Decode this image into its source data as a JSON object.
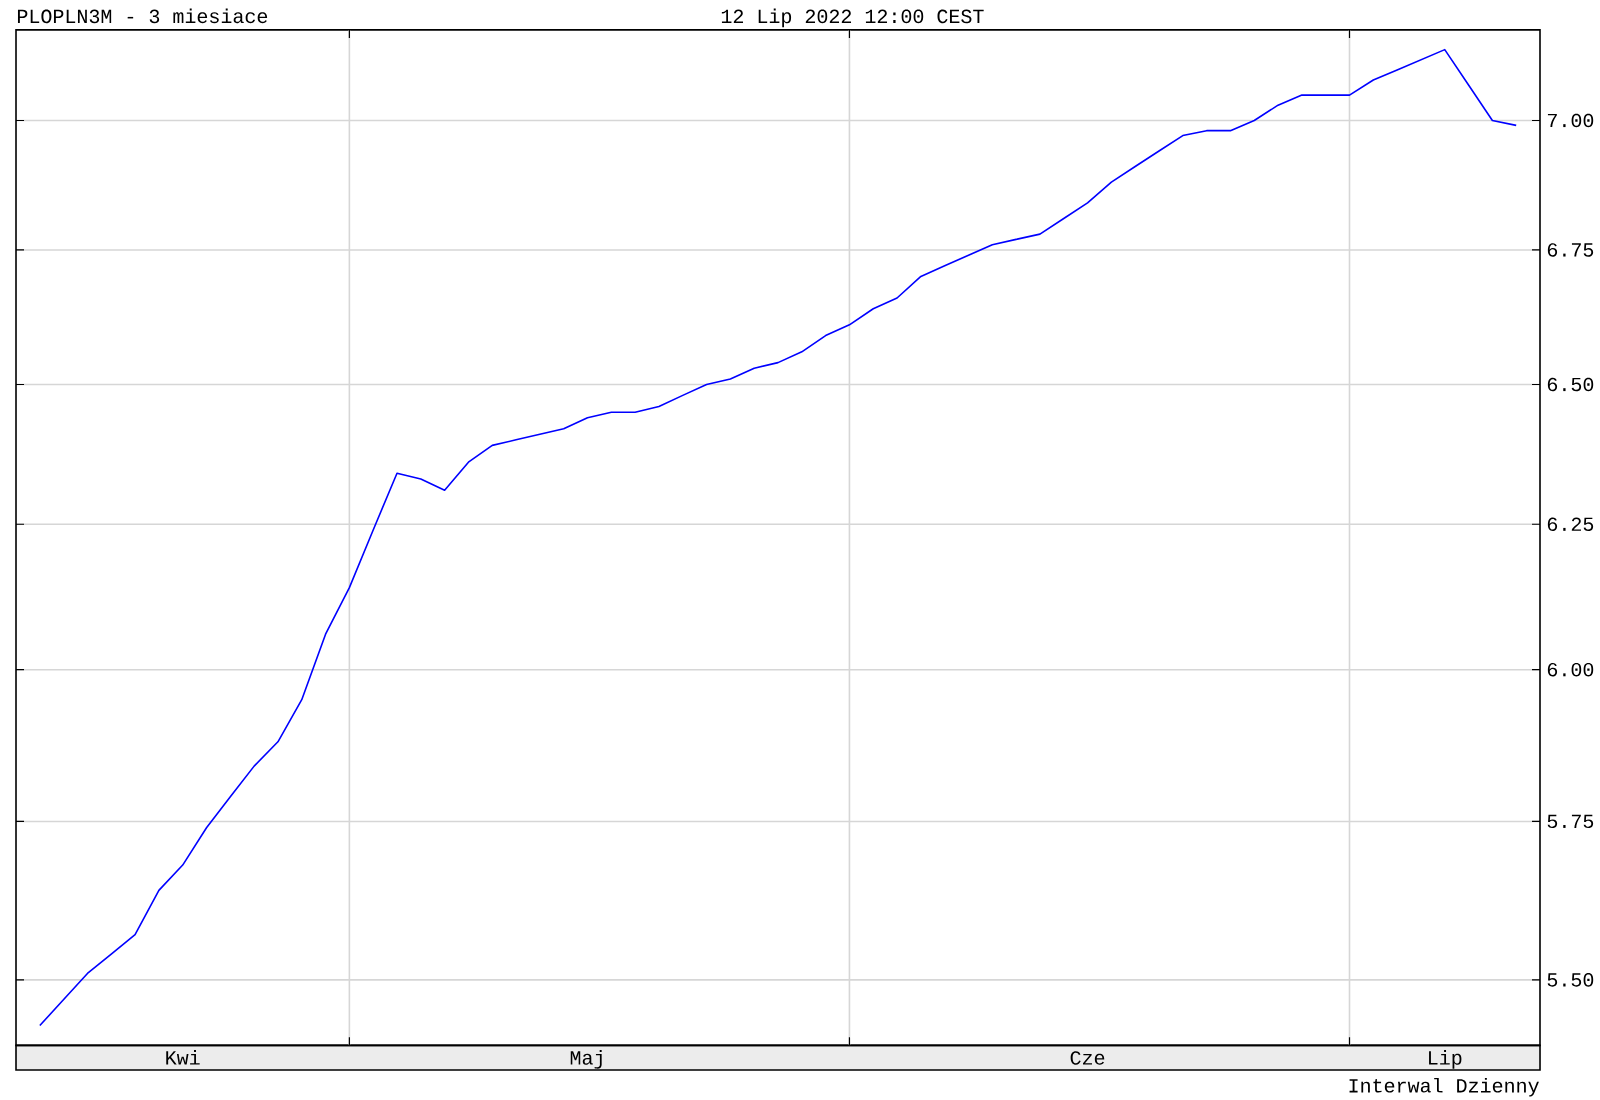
{
  "chart_data": {
    "type": "line",
    "title": "PLOPLN3M - 3 miesiace",
    "subtitle": "12 Lip 2022 12:00 CEST",
    "annotations": [
      "Interwal Dzienny"
    ],
    "categories": [
      null,
      null,
      null,
      null,
      null,
      null,
      "Kwi",
      null,
      null,
      null,
      null,
      null,
      null,
      null,
      null,
      null,
      null,
      null,
      null,
      null,
      null,
      null,
      null,
      "Maj",
      null,
      null,
      null,
      null,
      null,
      null,
      null,
      null,
      null,
      null,
      null,
      null,
      null,
      null,
      null,
      null,
      null,
      null,
      null,
      null,
      "Cze",
      null,
      null,
      null,
      null,
      null,
      null,
      null,
      null,
      null,
      null,
      null,
      null,
      null,
      null,
      "Lip",
      null,
      null,
      null
    ],
    "values": [
      5.43,
      5.47,
      5.51,
      5.54,
      5.57,
      5.64,
      5.68,
      5.74,
      5.79,
      5.84,
      5.88,
      5.95,
      6.06,
      6.14,
      6.24,
      6.34,
      6.33,
      6.31,
      6.36,
      6.39,
      6.4,
      6.41,
      6.42,
      6.44,
      6.45,
      6.45,
      6.46,
      6.48,
      6.5,
      6.51,
      6.53,
      6.54,
      6.56,
      6.59,
      6.61,
      6.64,
      6.66,
      6.7,
      6.72,
      6.74,
      6.76,
      6.77,
      6.78,
      6.81,
      6.84,
      6.88,
      6.91,
      6.94,
      6.97,
      6.98,
      6.98,
      7.0,
      7.03,
      7.05,
      7.05,
      7.05,
      7.08,
      7.1,
      7.12,
      7.14,
      7.07,
      7.0,
      6.99
    ],
    "color": "#0000ff",
    "ylim": [
      5.4,
      7.18
    ],
    "yticks": [
      {
        "value": 5.5,
        "label": "5.50"
      },
      {
        "value": 5.75,
        "label": "5.75"
      },
      {
        "value": 6.0,
        "label": "6.00"
      },
      {
        "value": 6.25,
        "label": "6.25"
      },
      {
        "value": 6.5,
        "label": "6.50"
      },
      {
        "value": 6.75,
        "label": "6.75"
      },
      {
        "value": 7.0,
        "label": "7.00"
      }
    ],
    "log": true,
    "grid": true
  }
}
